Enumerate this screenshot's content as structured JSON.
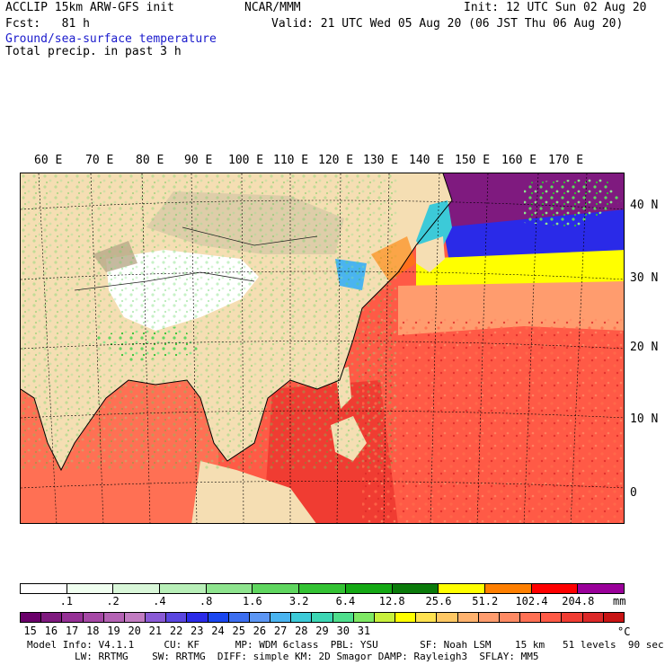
{
  "header": {
    "line1_left": "ACCLIP 15km ARW-GFS init",
    "line1_center": "NCAR/MMM",
    "line1_right": "Init: 12 UTC Sun 02 Aug 20",
    "line2_left": "Fcst:   81 h",
    "line2_right": "Valid: 21 UTC Wed 05 Aug 20 (06 JST Thu 06 Aug 20)",
    "field1": "Ground/sea-surface temperature",
    "field2": "Total precip. in past 3 h"
  },
  "map": {
    "region": "East Asia / Western Pacific",
    "lon_labels": [
      "60 E",
      "70 E",
      "80 E",
      "90 E",
      "100 E",
      "110 E",
      "120 E",
      "130 E",
      "140 E",
      "150 E",
      "160 E",
      "170 E"
    ],
    "lat_labels": [
      "40 N",
      "30 N",
      "20 N",
      "10 N",
      "0"
    ]
  },
  "precip_scale": {
    "colors": [
      "#ffffff",
      "#f0fff0",
      "#d9f7d9",
      "#b8efb8",
      "#8ee48e",
      "#5fd65f",
      "#33c233",
      "#14a814",
      "#0a7a0a",
      "#ffff00",
      "#ff7f00",
      "#ff0000",
      "#9a009a"
    ],
    "tick_labels": [
      ".1",
      ".2",
      ".4",
      ".8",
      "1.6",
      "3.2",
      "6.4",
      "12.8",
      "25.6",
      "51.2",
      "102.4",
      "204.8"
    ],
    "unit": "mm"
  },
  "temp_scale": {
    "colors": [
      "#6a006a",
      "#7f1a7f",
      "#963096",
      "#a648a6",
      "#b462b4",
      "#c27cc2",
      "#8a5ad6",
      "#5a46e0",
      "#2a2ae8",
      "#1a46f0",
      "#3c6ef0",
      "#5c96f4",
      "#4ab4f0",
      "#3ccad8",
      "#3cd6b4",
      "#4ede8c",
      "#7ee864",
      "#c8f03c",
      "#ffff00",
      "#ffe250",
      "#ffc864",
      "#ffb26e",
      "#ff9c6e",
      "#ff8a64",
      "#ff7054",
      "#ff5a46",
      "#f03c32",
      "#dc2828",
      "#c81414"
    ],
    "tick_labels": [
      "15",
      "16",
      "17",
      "18",
      "19",
      "20",
      "21",
      "22",
      "23",
      "24",
      "25",
      "26",
      "27",
      "28",
      "29",
      "30",
      "31"
    ],
    "unit": "°C"
  },
  "footer": {
    "line1": "Model Info: V4.1.1     CU: KF      MP: WDM 6class  PBL: YSU       SF: Noah LSM    15 km   51 levels  90 sec",
    "line2": "        LW: RRTMG    SW: RRTMG  DIFF: simple KM: 2D Smagor DAMP: Rayleigh3  SFLAY: MM5"
  }
}
